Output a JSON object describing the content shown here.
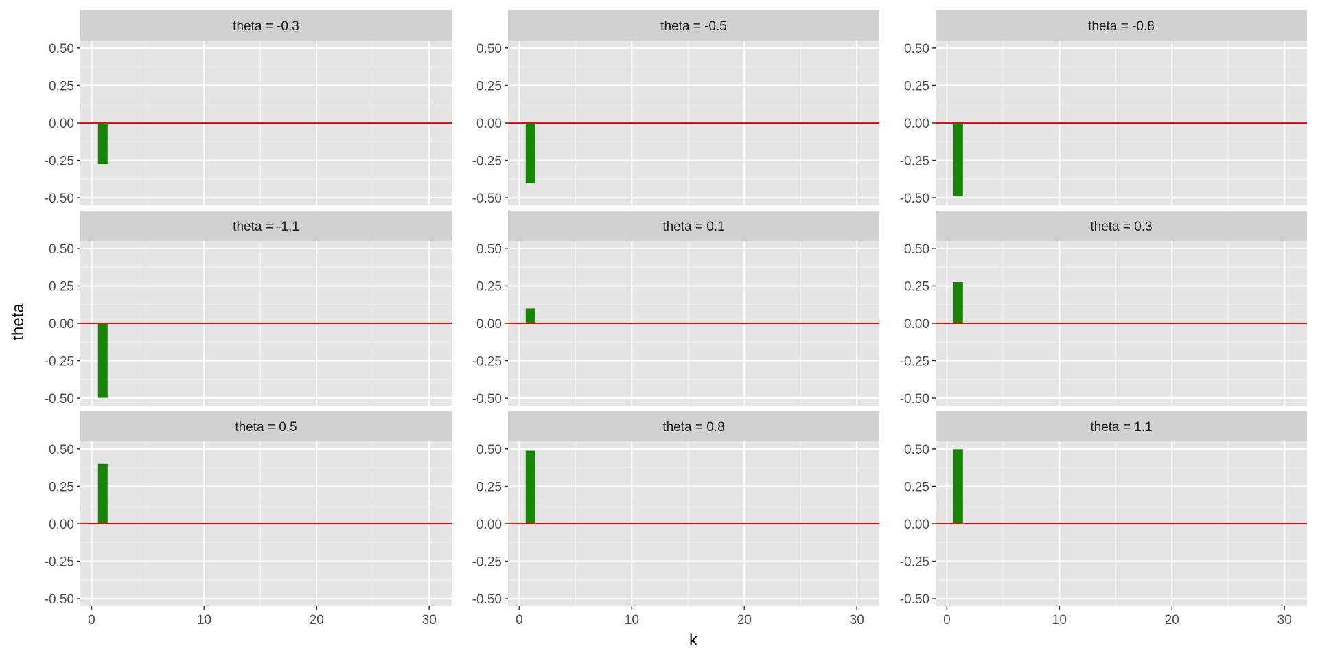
{
  "chart_data": {
    "type": "bar",
    "facet_layout": "3x3 grid",
    "xlabel": "k",
    "ylabel": "theta",
    "xlim": [
      -1,
      32
    ],
    "ylim": [
      -0.55,
      0.55
    ],
    "x_ticks": [
      0,
      10,
      20,
      30
    ],
    "x_tick_labels": [
      "0",
      "10",
      "20",
      "30"
    ],
    "y_ticks": [
      -0.5,
      -0.25,
      0,
      0.25,
      0.5
    ],
    "y_tick_labels": [
      "-0.50",
      "-0.25",
      "0.00",
      "0.25",
      "0.50"
    ],
    "grid": true,
    "reference_line": {
      "y": 0,
      "color": "#FF0000"
    },
    "bar_color": "#178307",
    "panel_background": "#E5E5E5",
    "strip_background": "#D1D1D1",
    "facets": [
      {
        "label": "theta = -0.3",
        "x": [
          1
        ],
        "values": [
          -0.275
        ]
      },
      {
        "label": "theta = -0.5",
        "x": [
          1
        ],
        "values": [
          -0.4
        ]
      },
      {
        "label": "theta = -0.8",
        "x": [
          1
        ],
        "values": [
          -0.488
        ]
      },
      {
        "label": "theta = -1,1",
        "x": [
          1
        ],
        "values": [
          -0.498
        ]
      },
      {
        "label": "theta = 0.1",
        "x": [
          1
        ],
        "values": [
          0.099
        ]
      },
      {
        "label": "theta = 0.3",
        "x": [
          1
        ],
        "values": [
          0.275
        ]
      },
      {
        "label": "theta = 0.5",
        "x": [
          1
        ],
        "values": [
          0.4
        ]
      },
      {
        "label": "theta = 0.8",
        "x": [
          1
        ],
        "values": [
          0.488
        ]
      },
      {
        "label": "theta = 1.1",
        "x": [
          1
        ],
        "values": [
          0.498
        ]
      }
    ]
  }
}
